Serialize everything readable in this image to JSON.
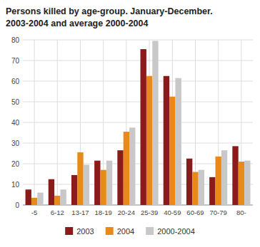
{
  "chart_data": {
    "type": "bar",
    "title": "Persons killed by age-group. January-December.",
    "subtitle": "2003-2004 and average 2000-2004",
    "categories": [
      "-5",
      "6-12",
      "13-17",
      "18-19",
      "20-24",
      "25-39",
      "40-59",
      "60-69",
      "70-79",
      "80-"
    ],
    "series": [
      {
        "name": "2003",
        "color": "#8B1A1A",
        "values": [
          7.5,
          12.5,
          14.5,
          21.5,
          26.5,
          75.5,
          62.5,
          22.5,
          13.5,
          28.5
        ]
      },
      {
        "name": "2004",
        "color": "#E8891A",
        "values": [
          3.5,
          4.5,
          25.5,
          17.0,
          35.5,
          62.5,
          52.5,
          16.0,
          23.5,
          21.0
        ]
      },
      {
        "name": "2000-2004",
        "color": "#C8C8C8",
        "values": [
          6.0,
          7.5,
          19.5,
          21.5,
          37.5,
          79.5,
          61.5,
          17.0,
          26.5,
          21.5
        ]
      }
    ],
    "ylim": [
      0,
      80
    ],
    "yticks": [
      0,
      10,
      20,
      30,
      40,
      50,
      60,
      70,
      80
    ],
    "grid": true,
    "legend": "bottom"
  }
}
